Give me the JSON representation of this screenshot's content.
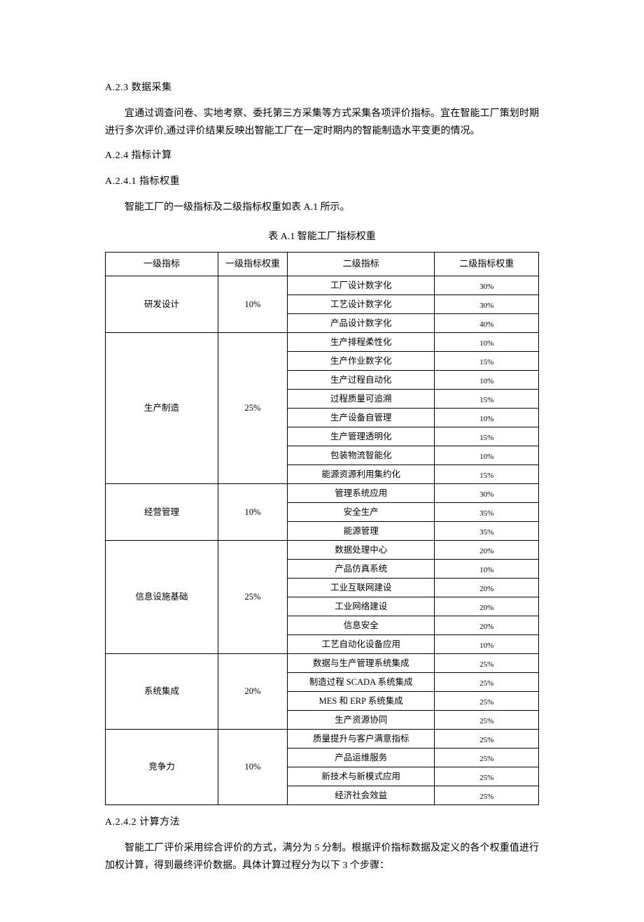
{
  "sections": {
    "a23": {
      "heading": "A.2.3 数据采集",
      "body": "宜通过调查问卷、实地考察、委托第三方采集等方式采集各项评价指标。宜在智能工厂策划时期进行多次评价,通过评价结果反映出智能工厂在一定时期内的智能制造水平变更的情况。"
    },
    "a24": {
      "heading": "A.2.4 指标计算"
    },
    "a241": {
      "heading": "A.2.4.1 指标权重",
      "body": "智能工厂的一级指标及二级指标权重如表 A.1 所示。"
    },
    "a242": {
      "heading": "A.2.4.2 计算方法",
      "body": "智能工厂评价采用综合评价的方式，满分为 5 分制。根据评价指标数据及定义的各个权重值进行加权计算，得到最终评价数据。具体计算过程分为以下 3 个步骤："
    }
  },
  "table": {
    "caption": "表 A.1 智能工厂指标权重",
    "headers": {
      "h1": "一级指标",
      "h2": "一级指标权重",
      "h3": "二级指标",
      "h4": "二级指标权重"
    },
    "groups": [
      {
        "name": "研发设计",
        "weight": "10%",
        "rows": [
          {
            "l2": "工厂设计数字化",
            "w2": "30%"
          },
          {
            "l2": "工艺设计数字化",
            "w2": "30%"
          },
          {
            "l2": "产品设计数字化",
            "w2": "40%"
          }
        ]
      },
      {
        "name": "生产制造",
        "weight": "25%",
        "rows": [
          {
            "l2": "生产排程柔性化",
            "w2": "10%"
          },
          {
            "l2": "生产作业数字化",
            "w2": "15%"
          },
          {
            "l2": "生产过程自动化",
            "w2": "10%"
          },
          {
            "l2": "过程质量可追溯",
            "w2": "15%"
          },
          {
            "l2": "生产设备自管理",
            "w2": "10%"
          },
          {
            "l2": "生产管理透明化",
            "w2": "15%"
          },
          {
            "l2": "包装物流智能化",
            "w2": "10%"
          },
          {
            "l2": "能源资源利用集约化",
            "w2": "15%"
          }
        ]
      },
      {
        "name": "经营管理",
        "weight": "10%",
        "rows": [
          {
            "l2": "管理系统应用",
            "w2": "30%"
          },
          {
            "l2": "安全生产",
            "w2": "35%"
          },
          {
            "l2": "能源管理",
            "w2": "35%"
          }
        ]
      },
      {
        "name": "信息设施基础",
        "weight": "25%",
        "rows": [
          {
            "l2": "数据处理中心",
            "w2": "20%"
          },
          {
            "l2": "产品仿真系统",
            "w2": "10%"
          },
          {
            "l2": "工业互联网建设",
            "w2": "20%"
          },
          {
            "l2": "工业网络建设",
            "w2": "20%"
          },
          {
            "l2": "信息安全",
            "w2": "20%"
          },
          {
            "l2": "工艺自动化设备应用",
            "w2": "10%"
          }
        ]
      },
      {
        "name": "系统集成",
        "weight": "20%",
        "rows": [
          {
            "l2": "数据与生产管理系统集成",
            "w2": "25%"
          },
          {
            "l2": "制造过程 SCADA 系统集成",
            "w2": "25%"
          },
          {
            "l2": "MES 和 ERP 系统集成",
            "w2": "25%"
          },
          {
            "l2": "生产资源协同",
            "w2": "25%"
          }
        ]
      },
      {
        "name": "竞争力",
        "weight": "10%",
        "rows": [
          {
            "l2": "质量提升与客户满意指标",
            "w2": "25%"
          },
          {
            "l2": "产品运维服务",
            "w2": "25%"
          },
          {
            "l2": "新技术与新模式应用",
            "w2": "25%"
          },
          {
            "l2": "经济社会效益",
            "w2": "25%"
          }
        ]
      }
    ]
  },
  "styles": {
    "body_bg": "#ffffff",
    "text_color": "#000000",
    "border_color": "#000000",
    "font_body_pt": 14,
    "font_table_pt": 12.5,
    "font_weight_pt": 11
  }
}
